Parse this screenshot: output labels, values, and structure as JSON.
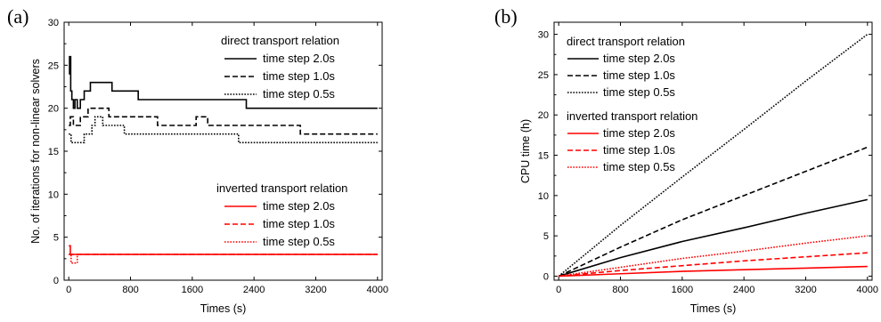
{
  "chart_data": [
    {
      "type": "line",
      "panel_label": "(a)",
      "title": "",
      "xlabel": "Times (s)",
      "ylabel": "No. of iterations for non-linear solvers",
      "xlim": [
        -60,
        4060
      ],
      "ylim": [
        0,
        30
      ],
      "xticks": [
        0,
        800,
        1600,
        2400,
        3200,
        4000
      ],
      "yticks": [
        0,
        5,
        10,
        15,
        20,
        25,
        30
      ],
      "grid": false,
      "step": true,
      "legend_groups": [
        {
          "header": "direct transport relation",
          "entries": [
            {
              "name": "time step 2.0s",
              "color": "#000000",
              "dash": "solid"
            },
            {
              "name": "time step 1.0s",
              "color": "#000000",
              "dash": "dashed"
            },
            {
              "name": "time step 0.5s",
              "color": "#000000",
              "dash": "dotted"
            }
          ]
        },
        {
          "header": "inverted transport relation",
          "entries": [
            {
              "name": "time step 2.0s",
              "color": "#ff0000",
              "dash": "solid"
            },
            {
              "name": "time step 1.0s",
              "color": "#ff0000",
              "dash": "dashed"
            },
            {
              "name": "time step 0.5s",
              "color": "#ff0000",
              "dash": "dotted"
            }
          ]
        }
      ],
      "series": [
        {
          "group": 0,
          "color": "#000000",
          "dash": "solid",
          "x": [
            0,
            10,
            25,
            40,
            60,
            80,
            110,
            150,
            200,
            280,
            460,
            560,
            900,
            1300,
            2300,
            4000
          ],
          "y": [
            24,
            26,
            22,
            21,
            20,
            21,
            20,
            21,
            22,
            23,
            23,
            22,
            21,
            21,
            20,
            20
          ]
        },
        {
          "group": 0,
          "color": "#000000",
          "dash": "dashed",
          "x": [
            0,
            20,
            60,
            150,
            250,
            520,
            1150,
            1650,
            1800,
            3000,
            4000
          ],
          "y": [
            18,
            19,
            18,
            19,
            20,
            19,
            18,
            19,
            18,
            17,
            17
          ]
        },
        {
          "group": 0,
          "color": "#000000",
          "dash": "dotted",
          "x": [
            0,
            30,
            100,
            200,
            300,
            340,
            440,
            720,
            2200,
            4000
          ],
          "y": [
            17,
            16,
            16,
            17,
            18,
            19,
            18,
            17,
            16,
            16
          ]
        },
        {
          "group": 1,
          "color": "#ff0000",
          "dash": "solid",
          "x": [
            0,
            20,
            4000
          ],
          "y": [
            4,
            3,
            3
          ]
        },
        {
          "group": 1,
          "color": "#ff0000",
          "dash": "dashed",
          "x": [
            0,
            80,
            4000
          ],
          "y": [
            3,
            3,
            3
          ]
        },
        {
          "group": 1,
          "color": "#ff0000",
          "dash": "dotted",
          "x": [
            0,
            30,
            110,
            4000
          ],
          "y": [
            3,
            2,
            3,
            3
          ]
        }
      ]
    },
    {
      "type": "line",
      "panel_label": "(b)",
      "title": "",
      "xlabel": "Times (s)",
      "ylabel": "CPU time (h)",
      "xlim": [
        -60,
        4060
      ],
      "ylim": [
        -0.5,
        31.5
      ],
      "xticks": [
        0,
        800,
        1600,
        2400,
        3200,
        4000
      ],
      "yticks": [
        0,
        5,
        10,
        15,
        20,
        25,
        30
      ],
      "grid": false,
      "step": false,
      "legend_groups": [
        {
          "header": "direct transport relation",
          "entries": [
            {
              "name": "time step 2.0s",
              "color": "#000000",
              "dash": "solid"
            },
            {
              "name": "time step 1.0s",
              "color": "#000000",
              "dash": "dashed"
            },
            {
              "name": "time step 0.5s",
              "color": "#000000",
              "dash": "dotted"
            }
          ]
        },
        {
          "header": "inverted transport relation",
          "entries": [
            {
              "name": "time step 2.0s",
              "color": "#ff0000",
              "dash": "solid"
            },
            {
              "name": "time step 1.0s",
              "color": "#ff0000",
              "dash": "dashed"
            },
            {
              "name": "time step 0.5s",
              "color": "#ff0000",
              "dash": "dotted"
            }
          ]
        }
      ],
      "series": [
        {
          "group": 0,
          "color": "#000000",
          "dash": "solid",
          "x": [
            0,
            800,
            1600,
            2400,
            3200,
            4000
          ],
          "y": [
            0,
            2.3,
            4.3,
            6.0,
            7.8,
            9.5
          ]
        },
        {
          "group": 0,
          "color": "#000000",
          "dash": "dashed",
          "x": [
            0,
            800,
            1600,
            2400,
            3200,
            4000
          ],
          "y": [
            0,
            3.6,
            7.0,
            10.0,
            13.0,
            16.0
          ]
        },
        {
          "group": 0,
          "color": "#000000",
          "dash": "dotted",
          "x": [
            0,
            800,
            1600,
            2400,
            3200,
            4000
          ],
          "y": [
            0,
            6.3,
            12.3,
            18.2,
            24.2,
            30.0
          ]
        },
        {
          "group": 1,
          "color": "#ff0000",
          "dash": "solid",
          "x": [
            0,
            800,
            1600,
            2400,
            3200,
            4000
          ],
          "y": [
            0,
            0.3,
            0.6,
            0.8,
            1.0,
            1.2
          ]
        },
        {
          "group": 1,
          "color": "#ff0000",
          "dash": "dashed",
          "x": [
            0,
            800,
            1600,
            2400,
            3200,
            4000
          ],
          "y": [
            0,
            0.7,
            1.3,
            1.9,
            2.4,
            2.9
          ]
        },
        {
          "group": 1,
          "color": "#ff0000",
          "dash": "dotted",
          "x": [
            0,
            800,
            1600,
            2400,
            3200,
            4000
          ],
          "y": [
            0,
            1.1,
            2.2,
            3.1,
            4.1,
            5.0
          ]
        }
      ]
    }
  ]
}
